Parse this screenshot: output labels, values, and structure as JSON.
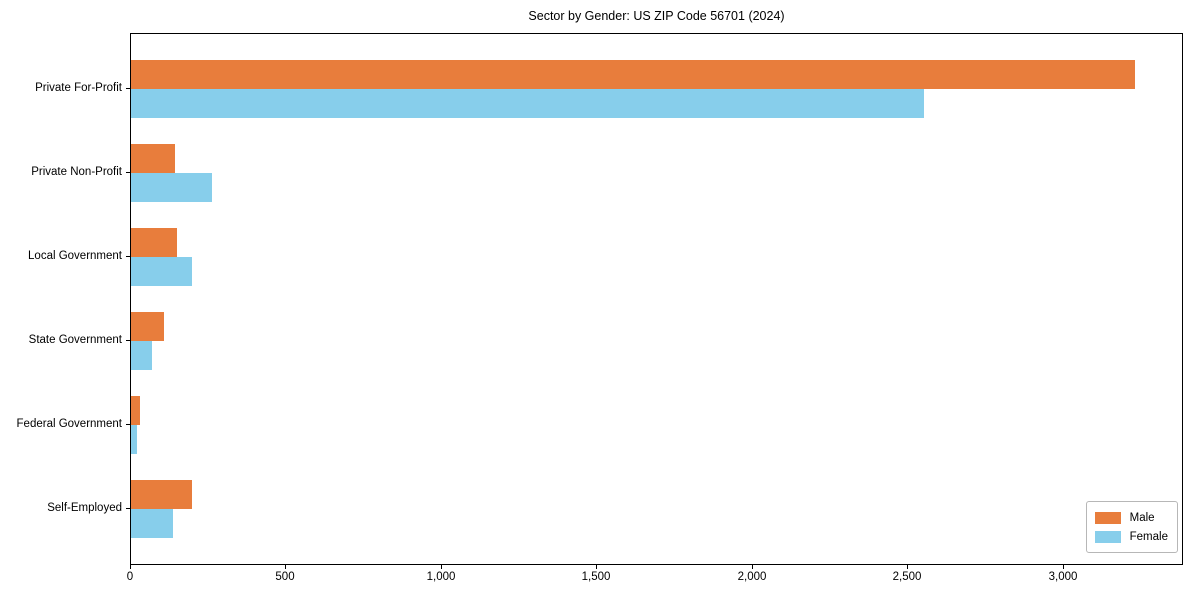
{
  "chart_data": {
    "type": "bar",
    "orientation": "horizontal",
    "title": "Sector by Gender: US ZIP Code 56701 (2024)",
    "categories": [
      "Private For-Profit",
      "Private Non-Profit",
      "Local Government",
      "State Government",
      "Federal Government",
      "Self-Employed"
    ],
    "series": [
      {
        "name": "Male",
        "color": "#e87d3c",
        "values": [
          3230,
          140,
          148,
          105,
          30,
          195
        ]
      },
      {
        "name": "Female",
        "color": "#87ceeb",
        "values": [
          2550,
          260,
          197,
          68,
          20,
          135
        ]
      }
    ],
    "xlabel": "",
    "ylabel": "",
    "x_ticks": [
      0,
      500,
      1000,
      1500,
      2000,
      2500,
      3000
    ],
    "x_tick_labels": [
      "0",
      "500",
      "1,000",
      "1,500",
      "2,000",
      "2,500",
      "3,000"
    ],
    "xlim": [
      0,
      3386
    ],
    "grid": false,
    "legend_position": "lower right",
    "background_color": "#ffffff",
    "spine_color": "#000000"
  }
}
